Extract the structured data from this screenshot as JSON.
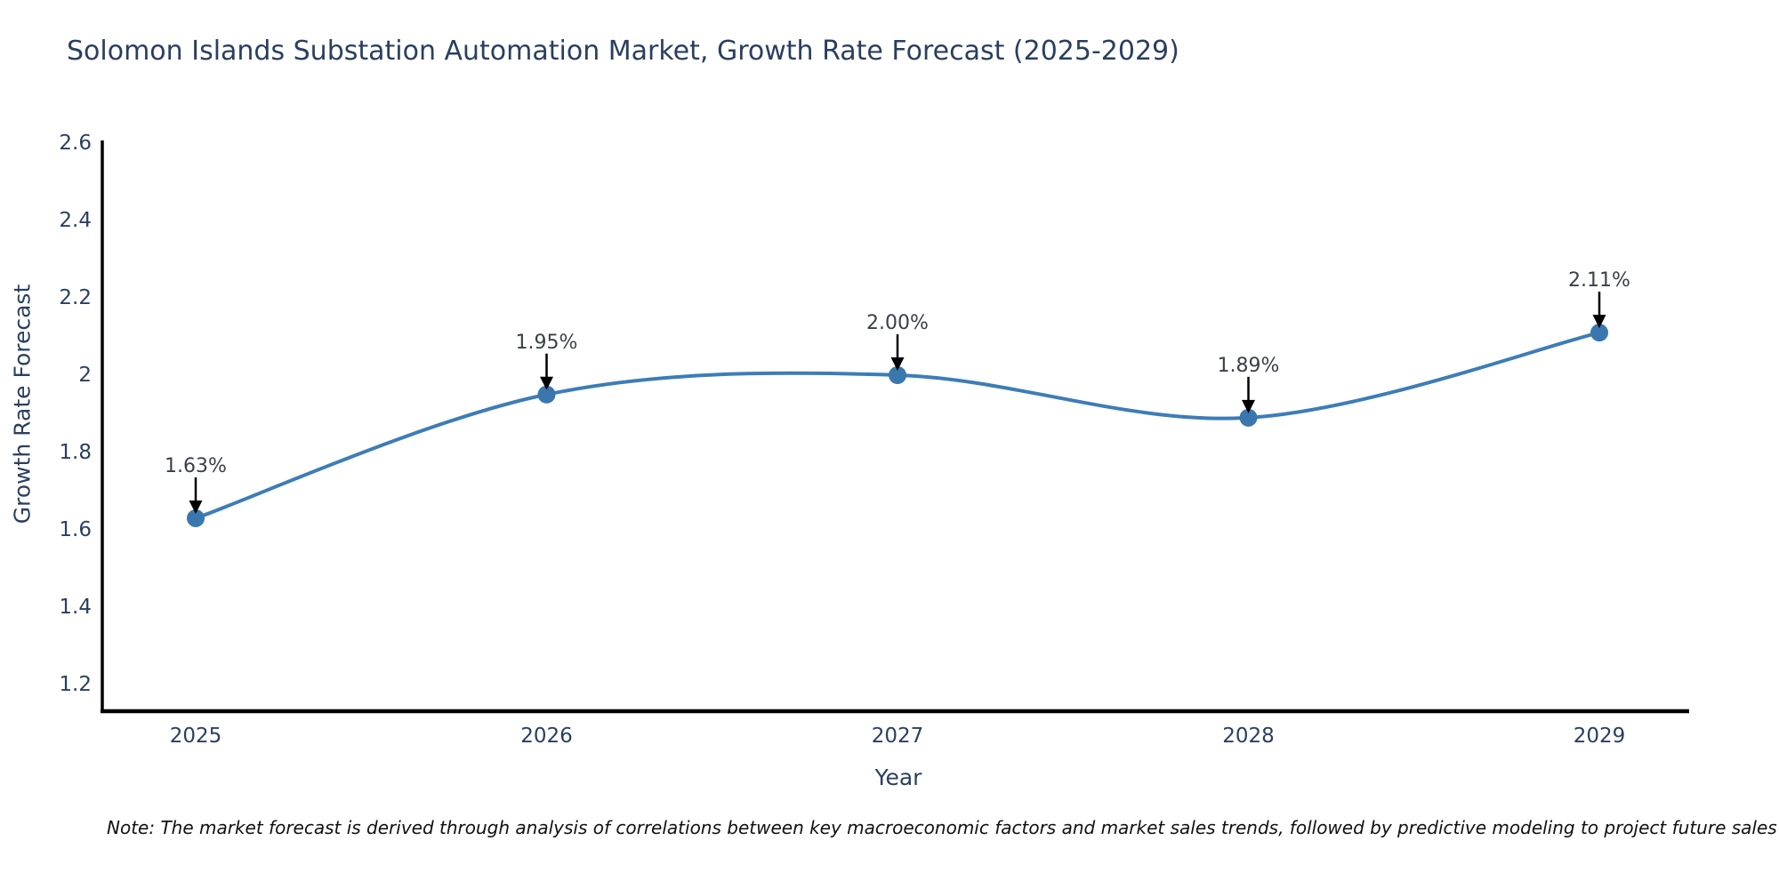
{
  "note": "Note: The market forecast is derived through analysis of correlations between key macroeconomic factors and market sales trends, followed by predictive modeling to project future sales",
  "chart_data": {
    "type": "line",
    "title": "Solomon Islands Substation Automation Market, Growth Rate Forecast (2025-2029)",
    "xlabel": "Year",
    "ylabel": "Growth Rate Forecast",
    "x": [
      2025,
      2026,
      2027,
      2028,
      2029
    ],
    "xtick_labels": [
      "2025",
      "2026",
      "2027",
      "2028",
      "2029"
    ],
    "values": [
      1.63,
      1.95,
      2.0,
      1.89,
      2.11
    ],
    "point_labels": [
      "1.63%",
      "1.95%",
      "2.00%",
      "1.89%",
      "2.11%"
    ],
    "yticks": [
      1.2,
      1.4,
      1.6,
      1.8,
      2.0,
      2.2,
      2.4,
      2.6
    ],
    "ytick_labels": [
      "1.2",
      "1.4",
      "1.6",
      "1.8",
      "2",
      "2.2",
      "2.4",
      "2.6"
    ],
    "ylim": [
      1.13,
      2.61
    ],
    "xlim": [
      2024.73,
      2029.26
    ],
    "line_shape": "spline",
    "grid": false,
    "legend": "none",
    "colors": {
      "line": "#3d7db6",
      "marker": "#3a77ae",
      "axis": "#000000",
      "tick_text": "#2a3f5f",
      "title_text": "#2a3f5f",
      "annotation_text": "#3a3f4a",
      "annotation_arrow": "#000000"
    }
  }
}
